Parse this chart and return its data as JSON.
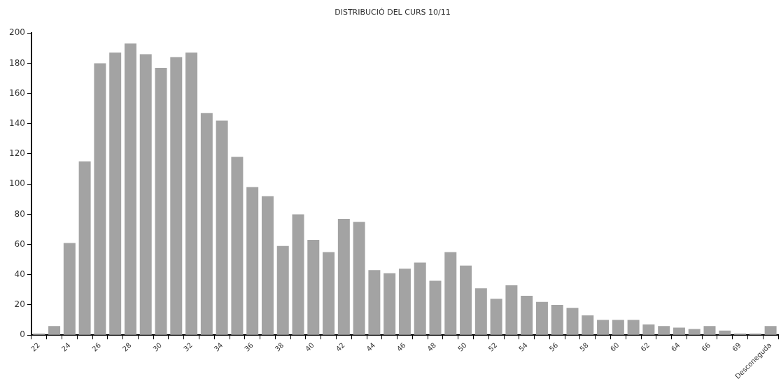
{
  "chart_data": {
    "type": "bar",
    "title": "DISTRIBUCIÓ DEL CURS 10/11",
    "categories": [
      "22",
      null,
      "24",
      null,
      "26",
      null,
      "28",
      null,
      "30",
      null,
      "32",
      null,
      "34",
      null,
      "36",
      null,
      "38",
      null,
      "40",
      null,
      "42",
      null,
      "44",
      null,
      "46",
      null,
      "48",
      null,
      "50",
      null,
      "52",
      null,
      "54",
      null,
      "56",
      null,
      "58",
      null,
      "60",
      null,
      "62",
      null,
      "64",
      null,
      "66",
      null,
      "69",
      null,
      "Desconeguda"
    ],
    "values": [
      1,
      6,
      61,
      115,
      180,
      187,
      193,
      186,
      177,
      184,
      187,
      147,
      142,
      118,
      98,
      92,
      59,
      80,
      63,
      55,
      77,
      75,
      43,
      41,
      44,
      48,
      36,
      55,
      46,
      31,
      24,
      33,
      26,
      22,
      20,
      18,
      13,
      10,
      10,
      10,
      7,
      6,
      5,
      4,
      6,
      3,
      1,
      1,
      6
    ],
    "color": "#a3a3a3",
    "ylim": [
      0,
      200
    ],
    "yticks": [
      0,
      20,
      40,
      60,
      80,
      100,
      120,
      140,
      160,
      180,
      200
    ],
    "grid": false,
    "legend": false
  }
}
